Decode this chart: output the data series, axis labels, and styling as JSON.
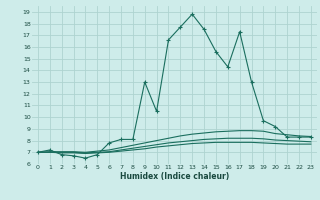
{
  "xlabel": "Humidex (Indice chaleur)",
  "bg_color": "#ceecea",
  "grid_color": "#aed4d0",
  "line_color": "#1a6e5e",
  "xlim": [
    -0.5,
    23.5
  ],
  "ylim": [
    6.0,
    19.5
  ],
  "yticks": [
    6,
    7,
    8,
    9,
    10,
    11,
    12,
    13,
    14,
    15,
    16,
    17,
    18,
    19
  ],
  "xticks": [
    0,
    1,
    2,
    3,
    4,
    5,
    6,
    7,
    8,
    9,
    10,
    11,
    12,
    13,
    14,
    15,
    16,
    17,
    18,
    19,
    20,
    21,
    22,
    23
  ],
  "lines": [
    {
      "x": [
        0,
        1,
        2,
        3,
        4,
        5,
        6,
        7,
        8,
        9,
        10,
        11,
        12,
        13,
        14,
        15,
        16,
        17,
        18,
        19,
        20,
        21,
        22,
        23
      ],
      "y": [
        7.0,
        7.2,
        6.8,
        6.7,
        6.5,
        6.8,
        7.8,
        8.1,
        8.1,
        13.0,
        10.5,
        16.6,
        17.7,
        18.8,
        17.5,
        15.6,
        14.3,
        17.3,
        13.0,
        9.7,
        9.2,
        8.3,
        8.3,
        8.3
      ],
      "marker": true
    },
    {
      "x": [
        0,
        1,
        2,
        3,
        4,
        5,
        6,
        7,
        8,
        9,
        10,
        11,
        12,
        13,
        14,
        15,
        16,
        17,
        18,
        19,
        20,
        21,
        22,
        23
      ],
      "y": [
        7.0,
        7.05,
        7.05,
        7.05,
        7.0,
        7.1,
        7.2,
        7.4,
        7.6,
        7.8,
        8.0,
        8.2,
        8.4,
        8.55,
        8.65,
        8.75,
        8.8,
        8.85,
        8.85,
        8.8,
        8.6,
        8.5,
        8.4,
        8.35
      ],
      "marker": false
    },
    {
      "x": [
        0,
        1,
        2,
        3,
        4,
        5,
        6,
        7,
        8,
        9,
        10,
        11,
        12,
        13,
        14,
        15,
        16,
        17,
        18,
        19,
        20,
        21,
        22,
        23
      ],
      "y": [
        7.0,
        7.0,
        7.0,
        7.0,
        6.95,
        7.0,
        7.05,
        7.2,
        7.35,
        7.5,
        7.65,
        7.8,
        7.9,
        8.0,
        8.1,
        8.15,
        8.2,
        8.2,
        8.2,
        8.15,
        8.05,
        8.0,
        7.95,
        7.9
      ],
      "marker": false
    },
    {
      "x": [
        0,
        1,
        2,
        3,
        4,
        5,
        6,
        7,
        8,
        9,
        10,
        11,
        12,
        13,
        14,
        15,
        16,
        17,
        18,
        19,
        20,
        21,
        22,
        23
      ],
      "y": [
        7.0,
        7.0,
        6.95,
        6.95,
        6.9,
        6.95,
        7.0,
        7.1,
        7.2,
        7.3,
        7.45,
        7.55,
        7.65,
        7.75,
        7.8,
        7.85,
        7.85,
        7.85,
        7.85,
        7.8,
        7.75,
        7.7,
        7.7,
        7.7
      ],
      "marker": false
    }
  ]
}
